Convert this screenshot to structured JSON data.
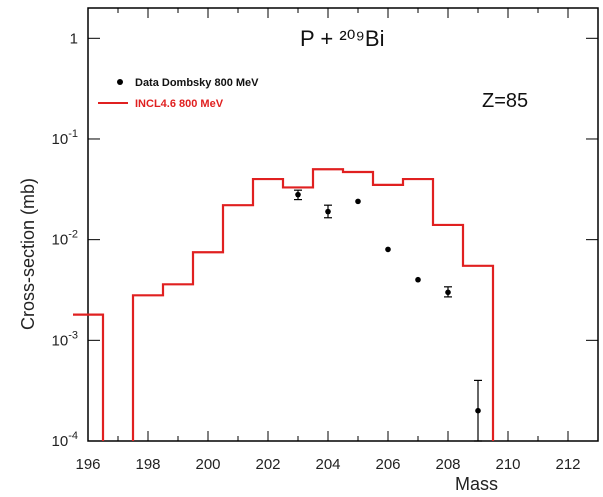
{
  "chart_data": {
    "type": "line",
    "title": "P + ²⁰⁹Bi",
    "annotation": "Z=85",
    "xlabel": "Mass",
    "ylabel": "Cross-section (mb)",
    "xlim": [
      196,
      213
    ],
    "ylim": [
      0.0001,
      2
    ],
    "yscale": "log",
    "x_ticks": [
      196,
      198,
      200,
      202,
      204,
      206,
      208,
      210,
      212
    ],
    "y_ticks": [
      {
        "value": 1,
        "base": "1",
        "exp": ""
      },
      {
        "value": 0.1,
        "base": "10",
        "exp": "-1"
      },
      {
        "value": 0.01,
        "base": "10",
        "exp": "-2"
      },
      {
        "value": 0.001,
        "base": "10",
        "exp": "-3"
      },
      {
        "value": 0.0001,
        "base": "10",
        "exp": "-4"
      }
    ],
    "legend_position": "top-left",
    "series": [
      {
        "name": "Data Dombsky 800 MeV",
        "kind": "points",
        "color": "#000000",
        "points": [
          {
            "x": 203,
            "y": 0.028,
            "err": [
              0.025,
              0.031
            ]
          },
          {
            "x": 204,
            "y": 0.019,
            "err": [
              0.0165,
              0.022
            ]
          },
          {
            "x": 205,
            "y": 0.024,
            "err": null
          },
          {
            "x": 206,
            "y": 0.008,
            "err": null
          },
          {
            "x": 207,
            "y": 0.004,
            "err": null
          },
          {
            "x": 208,
            "y": 0.003,
            "err": [
              0.0027,
              0.0034
            ]
          },
          {
            "x": 209,
            "y": 0.0002,
            "err": [
              0.0001,
              0.0004
            ]
          }
        ]
      },
      {
        "name": "INCL4.6  800 MeV",
        "kind": "step",
        "color": "#e02020",
        "bins": [
          {
            "x0": 195.5,
            "x1": 196.5,
            "y": 0.0018
          },
          {
            "x0": 197.5,
            "x1": 198.5,
            "y": 0.0028
          },
          {
            "x0": 198.5,
            "x1": 199.5,
            "y": 0.0036
          },
          {
            "x0": 199.5,
            "x1": 200.5,
            "y": 0.0075
          },
          {
            "x0": 200.5,
            "x1": 201.5,
            "y": 0.022
          },
          {
            "x0": 201.5,
            "x1": 202.5,
            "y": 0.04
          },
          {
            "x0": 202.5,
            "x1": 203.5,
            "y": 0.033
          },
          {
            "x0": 203.5,
            "x1": 204.5,
            "y": 0.05
          },
          {
            "x0": 204.5,
            "x1": 205.5,
            "y": 0.047
          },
          {
            "x0": 205.5,
            "x1": 206.5,
            "y": 0.035
          },
          {
            "x0": 206.5,
            "x1": 207.5,
            "y": 0.04
          },
          {
            "x0": 207.5,
            "x1": 208.5,
            "y": 0.014
          },
          {
            "x0": 208.5,
            "x1": 209.5,
            "y": 0.0055
          }
        ]
      }
    ]
  }
}
